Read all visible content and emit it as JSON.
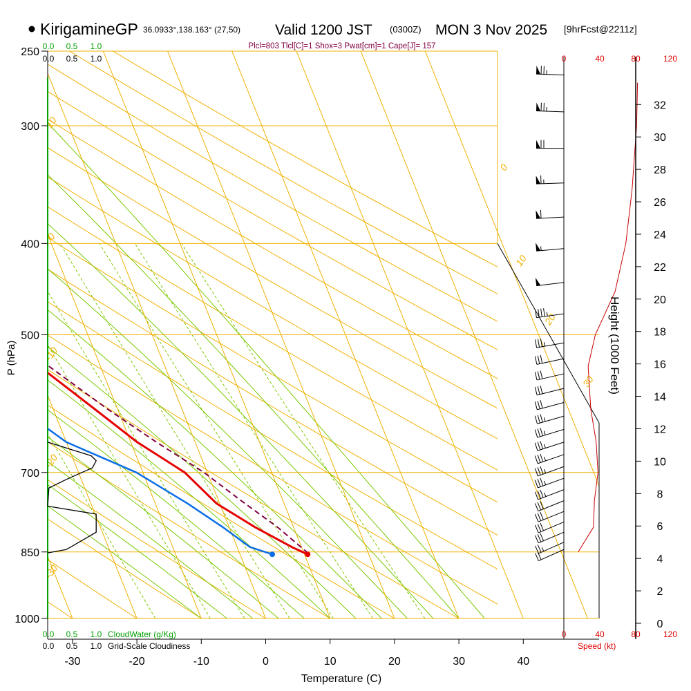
{
  "header": {
    "station": "KirigamineGP",
    "coords": "36.0933°,138.163° (27,50)",
    "valid": "Valid 1200 JST",
    "utc": "(0300Z)",
    "date": "MON 3 Nov 2025",
    "forecast": "[9hrFcst@2211z]",
    "indices": "Plcl=803 Tlcl[C]=1 Shox=3 Pwat[cm]=1 Cape[J]= 157"
  },
  "colors": {
    "isotherm": "#f0b000",
    "mixing": "#80c800",
    "adiabat": "#78c800",
    "temperature": "#e60000",
    "dewpoint": "#0a6ee6",
    "parcel": "#800040",
    "wind_text": "#e00000",
    "cloud_axis": "#00a000"
  },
  "chart_data": {
    "type": "line",
    "title": "Skew-T Log-P sounding",
    "xlabel": "Temperature (C)",
    "ylabel": "P (hPa)",
    "right_label": "Height (1000 Feet)",
    "x_ticks": [
      -30,
      -20,
      -10,
      0,
      10,
      20,
      30,
      40
    ],
    "p_ticks": [
      250,
      300,
      400,
      500,
      700,
      850,
      1000
    ],
    "height_ticks": [
      0,
      2,
      4,
      6,
      8,
      10,
      12,
      14,
      16,
      18,
      20,
      22,
      24,
      26,
      28,
      30,
      32
    ],
    "isotherm_labels": [
      {
        "t": 10,
        "text": "10"
      },
      {
        "t": 0,
        "text": "0"
      },
      {
        "t": -10,
        "text": "-10"
      },
      {
        "t": -20,
        "text": "-20"
      },
      {
        "t": -30,
        "text": "-30"
      },
      {
        "t": 0,
        "text": "0"
      },
      {
        "t": 10,
        "text": "10"
      },
      {
        "t": 20,
        "text": "20"
      },
      {
        "t": 30,
        "text": "30"
      }
    ],
    "mixing_ratio_labels": [
      "1",
      "2",
      "3",
      "5",
      "8",
      "12",
      "20"
    ],
    "temperature": {
      "p": [
        268,
        300,
        350,
        400,
        450,
        500,
        540,
        600,
        650,
        700,
        755,
        800,
        840,
        855
      ],
      "t": [
        -31.5,
        -31.6,
        -32.5,
        -30.5,
        -26.5,
        -23,
        -19.5,
        -13.5,
        -9,
        -3.5,
        -0.5,
        4,
        8.5,
        10.5
      ]
    },
    "dewpoint": {
      "p": [
        268,
        310,
        340,
        370,
        400,
        450,
        500,
        540,
        600,
        650,
        700,
        755,
        800,
        840,
        855
      ],
      "t": [
        -58,
        -53,
        -54,
        -63,
        -48,
        -39,
        -32,
        -29,
        -25,
        -20,
        -11,
        -5,
        -1,
        2,
        5
      ]
    },
    "parcel": {
      "p": [
        540,
        600,
        650,
        700,
        750,
        800,
        850
      ],
      "t": [
        -18,
        -11.5,
        -6,
        -0.5,
        3.5,
        7.5,
        10.5
      ]
    },
    "surface_markers": [
      {
        "p": 855,
        "t": 10.5,
        "kind": "temperature"
      },
      {
        "p": 855,
        "t": 5,
        "kind": "dewpoint"
      }
    ],
    "cloud_axis": {
      "top_ticks": [
        "0.0",
        "0.5",
        "1.0"
      ],
      "bottom_ticks": [
        "0.0",
        "0.5",
        "1.0"
      ],
      "title": "CloudWater (g/Kg)"
    },
    "cloudiness_axis": {
      "top_ticks": [
        "0.0",
        "0.5",
        "1.0"
      ],
      "bottom_ticks": [
        "0.0",
        "0.5",
        "1.0"
      ],
      "title": "Grid-Scale Cloudiness"
    },
    "cloudiness": {
      "p": [
        650,
        672,
        680,
        692,
        712,
        727,
        760,
        775,
        810,
        845,
        852
      ],
      "v": [
        0.0,
        0.7,
        0.78,
        0.72,
        0.3,
        0.02,
        0.0,
        0.78,
        0.78,
        0.3,
        0.0
      ]
    },
    "wind_speed": {
      "title": "Speed (kt)",
      "top_ticks": [
        "0",
        "40",
        "80",
        "120"
      ],
      "bottom_ticks": [
        "0",
        "40",
        "80",
        "120"
      ],
      "p": [
        270,
        300,
        350,
        400,
        450,
        500,
        540,
        600,
        650,
        700,
        750,
        800,
        850
      ],
      "kt": [
        82,
        81,
        76,
        69,
        57,
        35,
        27,
        30,
        36,
        38,
        34,
        33,
        16
      ]
    },
    "wind_barbs": {
      "p": [
        265,
        290,
        317,
        345,
        375,
        405,
        440,
        475,
        510,
        530,
        550,
        570,
        590,
        610,
        630,
        650,
        670,
        690,
        710,
        730,
        750,
        770,
        790,
        810,
        830,
        845
      ],
      "direction_deg": [
        272,
        272,
        270,
        268,
        267,
        265,
        263,
        262,
        260,
        258,
        257,
        256,
        255,
        254,
        253,
        252,
        251,
        250,
        250,
        249,
        248,
        248,
        247,
        247,
        246,
        246
      ],
      "speed_kt": [
        75,
        75,
        70,
        65,
        60,
        55,
        50,
        45,
        35,
        30,
        30,
        32,
        33,
        35,
        36,
        38,
        38,
        37,
        36,
        35,
        34,
        33,
        32,
        30,
        25,
        20
      ]
    }
  }
}
